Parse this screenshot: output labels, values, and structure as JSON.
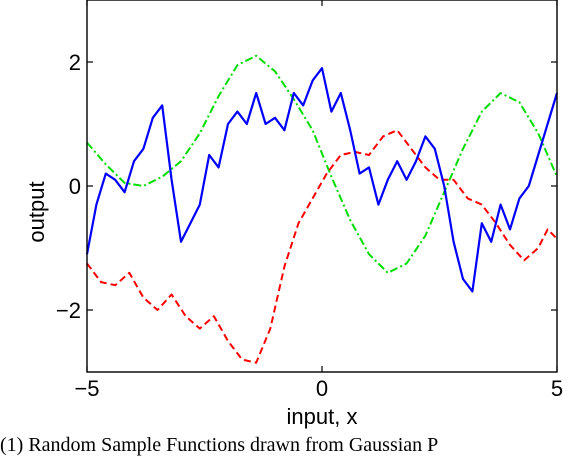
{
  "chart_data": {
    "type": "line",
    "xlabel": "input, x",
    "ylabel": "output",
    "xlim": [
      -5,
      5
    ],
    "ylim": [
      -3,
      3
    ],
    "xticks": [
      -5,
      0,
      5
    ],
    "xtick_labels": [
      "−5",
      "0",
      "5"
    ],
    "yticks": [
      -2,
      0,
      2
    ],
    "ytick_labels": [
      "−2",
      "0",
      "2"
    ],
    "grid": false,
    "legend": "none",
    "series": [
      {
        "color": "#0000ff",
        "style": "solid",
        "x": [
          -5.0,
          -4.8,
          -4.6,
          -4.4,
          -4.2,
          -4.0,
          -3.8,
          -3.6,
          -3.4,
          -3.2,
          -3.0,
          -2.8,
          -2.6,
          -2.4,
          -2.2,
          -2.0,
          -1.8,
          -1.6,
          -1.4,
          -1.2,
          -1.0,
          -0.8,
          -0.6,
          -0.4,
          -0.2,
          0.0,
          0.2,
          0.4,
          0.6,
          0.8,
          1.0,
          1.2,
          1.4,
          1.6,
          1.8,
          2.0,
          2.2,
          2.4,
          2.6,
          2.8,
          3.0,
          3.2,
          3.4,
          3.6,
          3.8,
          4.0,
          4.2,
          4.4,
          4.6,
          4.8,
          5.0
        ],
        "y": [
          -1.1,
          -0.3,
          0.2,
          0.1,
          -0.1,
          0.4,
          0.6,
          1.1,
          1.3,
          0.1,
          -0.9,
          -0.6,
          -0.3,
          0.5,
          0.3,
          1.0,
          1.2,
          1.0,
          1.5,
          1.0,
          1.1,
          0.9,
          1.5,
          1.3,
          1.7,
          1.9,
          1.2,
          1.5,
          0.9,
          0.2,
          0.3,
          -0.3,
          0.1,
          0.4,
          0.1,
          0.4,
          0.8,
          0.6,
          0.0,
          -0.9,
          -1.5,
          -1.7,
          -0.6,
          -0.9,
          -0.3,
          -0.7,
          -0.2,
          0.0,
          0.5,
          1.0,
          1.5
        ]
      },
      {
        "color": "#ff0000",
        "style": "dashed",
        "x": [
          -5.0,
          -4.7,
          -4.4,
          -4.1,
          -3.8,
          -3.5,
          -3.2,
          -2.9,
          -2.6,
          -2.3,
          -2.0,
          -1.7,
          -1.4,
          -1.1,
          -0.8,
          -0.5,
          -0.2,
          0.1,
          0.4,
          0.7,
          1.0,
          1.3,
          1.6,
          1.9,
          2.2,
          2.5,
          2.8,
          3.1,
          3.4,
          3.7,
          4.0,
          4.3,
          4.6,
          4.8,
          5.0
        ],
        "y": [
          -1.25,
          -1.55,
          -1.6,
          -1.4,
          -1.8,
          -2.0,
          -1.75,
          -2.1,
          -2.3,
          -2.1,
          -2.5,
          -2.8,
          -2.85,
          -2.3,
          -1.3,
          -0.6,
          -0.2,
          0.2,
          0.5,
          0.55,
          0.5,
          0.8,
          0.9,
          0.6,
          0.3,
          0.1,
          0.1,
          -0.2,
          -0.3,
          -0.6,
          -0.95,
          -1.2,
          -1.0,
          -0.7,
          -0.85
        ]
      },
      {
        "color": "#00dd00",
        "style": "dashdot",
        "x": [
          -5.0,
          -4.6,
          -4.2,
          -3.8,
          -3.4,
          -3.0,
          -2.6,
          -2.2,
          -1.8,
          -1.4,
          -1.0,
          -0.6,
          -0.2,
          0.2,
          0.6,
          1.0,
          1.4,
          1.8,
          2.2,
          2.6,
          3.0,
          3.4,
          3.8,
          4.2,
          4.6,
          5.0
        ],
        "y": [
          0.7,
          0.35,
          0.05,
          0.0,
          0.15,
          0.4,
          0.85,
          1.45,
          1.95,
          2.1,
          1.85,
          1.4,
          0.9,
          0.15,
          -0.55,
          -1.1,
          -1.4,
          -1.25,
          -0.8,
          -0.1,
          0.6,
          1.2,
          1.5,
          1.35,
          0.85,
          0.15
        ]
      }
    ]
  },
  "caption": "(1) Random Sample Functions drawn from Gaussian P"
}
